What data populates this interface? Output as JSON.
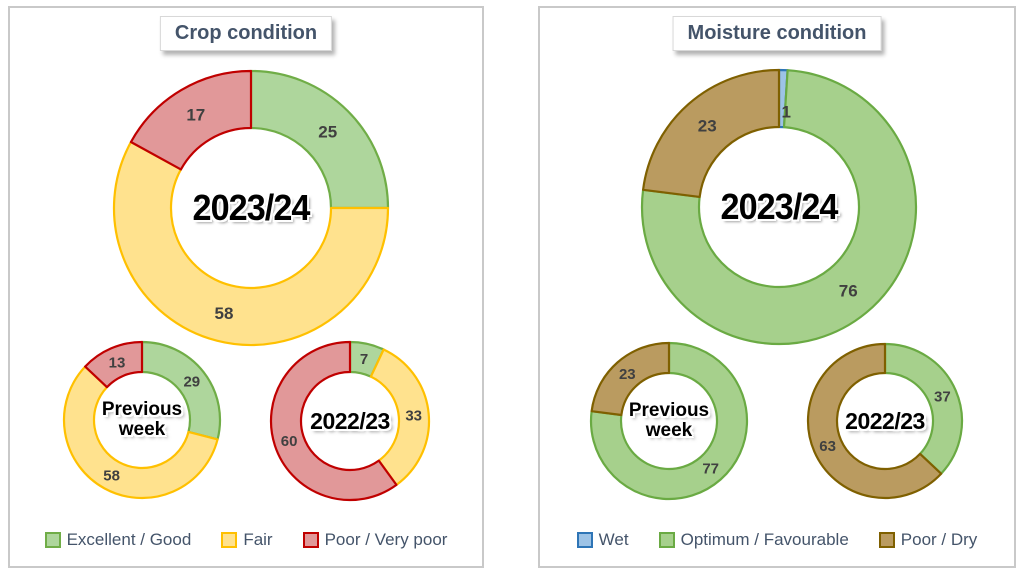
{
  "panels": [
    {
      "title": "Crop condition",
      "legend": [
        {
          "label": "Excellent / Good",
          "series": "good"
        },
        {
          "label": "Fair",
          "series": "fair"
        },
        {
          "label": "Poor / Very poor",
          "series": "poor"
        }
      ]
    },
    {
      "title": "Moisture condition",
      "legend": [
        {
          "label": "Wet",
          "series": "wet"
        },
        {
          "label": "Optimum / Favourable",
          "series": "optimum"
        },
        {
          "label": "Poor / Dry",
          "series": "dry"
        }
      ]
    }
  ],
  "series_colors": {
    "good": {
      "fill": "#aed69c",
      "stroke": "#70ad47"
    },
    "fair": {
      "fill": "#ffe28e",
      "stroke": "#ffc000"
    },
    "poor": {
      "fill": "#e19899",
      "stroke": "#c00000"
    },
    "wet": {
      "fill": "#9dc3e6",
      "stroke": "#2e75b6"
    },
    "optimum": {
      "fill": "#a6d08c",
      "stroke": "#6aaa43"
    },
    "dry": {
      "fill": "#ba9b60",
      "stroke": "#7f6000"
    }
  },
  "label_color": "#404040",
  "chart_data": [
    {
      "id": "crop-main",
      "type": "donut",
      "panel": "Crop condition",
      "center_label": "2023/24",
      "slices": [
        {
          "series": "good",
          "label": "Excellent / Good",
          "value": 25
        },
        {
          "series": "fair",
          "label": "Fair",
          "value": 58
        },
        {
          "series": "poor",
          "label": "Poor / Very poor",
          "value": 17
        }
      ]
    },
    {
      "id": "crop-prev",
      "type": "donut",
      "panel": "Crop condition",
      "center_label": "Previous\nweek",
      "slices": [
        {
          "series": "good",
          "label": "Excellent / Good",
          "value": 29
        },
        {
          "series": "fair",
          "label": "Fair",
          "value": 58
        },
        {
          "series": "poor",
          "label": "Poor / Very poor",
          "value": 13
        }
      ]
    },
    {
      "id": "crop-2223",
      "type": "donut",
      "panel": "Crop condition",
      "center_label": "2022/23",
      "slices": [
        {
          "series": "good",
          "label": "Excellent / Good",
          "value": 7
        },
        {
          "series": "fair",
          "label": "Fair",
          "value": 33
        },
        {
          "series": "poor",
          "label": "Poor / Very poor",
          "value": 60
        }
      ]
    },
    {
      "id": "moist-main",
      "type": "donut",
      "panel": "Moisture condition",
      "center_label": "2023/24",
      "slices": [
        {
          "series": "wet",
          "label": "Wet",
          "value": 1
        },
        {
          "series": "optimum",
          "label": "Optimum / Favourable",
          "value": 76
        },
        {
          "series": "dry",
          "label": "Poor / Dry",
          "value": 23
        }
      ]
    },
    {
      "id": "moist-prev",
      "type": "donut",
      "panel": "Moisture condition",
      "center_label": "Previous\nweek",
      "slices": [
        {
          "series": "optimum",
          "label": "Optimum / Favourable",
          "value": 77
        },
        {
          "series": "dry",
          "label": "Poor / Dry",
          "value": 23
        }
      ]
    },
    {
      "id": "moist-2223",
      "type": "donut",
      "panel": "Moisture condition",
      "center_label": "2022/23",
      "slices": [
        {
          "series": "optimum",
          "label": "Optimum / Favourable",
          "value": 37
        },
        {
          "series": "dry",
          "label": "Poor / Dry",
          "value": 63
        }
      ]
    }
  ]
}
